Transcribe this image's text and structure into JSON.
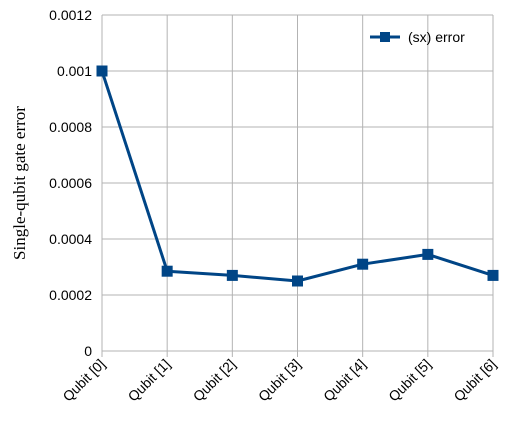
{
  "chart_data": {
    "type": "line",
    "categories": [
      "Qubit [0]",
      "Qubit [1]",
      "Qubit [2]",
      "Qubit [3]",
      "Qubit [4]",
      "Qubit [5]",
      "Qubit [6]"
    ],
    "series": [
      {
        "name": "(sx) error",
        "values": [
          0.001,
          0.000285,
          0.00027,
          0.00025,
          0.00031,
          0.000345,
          0.00027
        ],
        "color": "#004586",
        "marker": "square"
      }
    ],
    "ylabel": "Single-qubit gate error",
    "xlabel": "",
    "ylim": [
      0,
      0.0012
    ],
    "yticks": [
      "0",
      "0.0002",
      "0.0004",
      "0.0006",
      "0.0008",
      "0.001",
      "0.0012"
    ],
    "grid": true,
    "legend": "top-right",
    "grid_color": "#b3b3b3"
  }
}
